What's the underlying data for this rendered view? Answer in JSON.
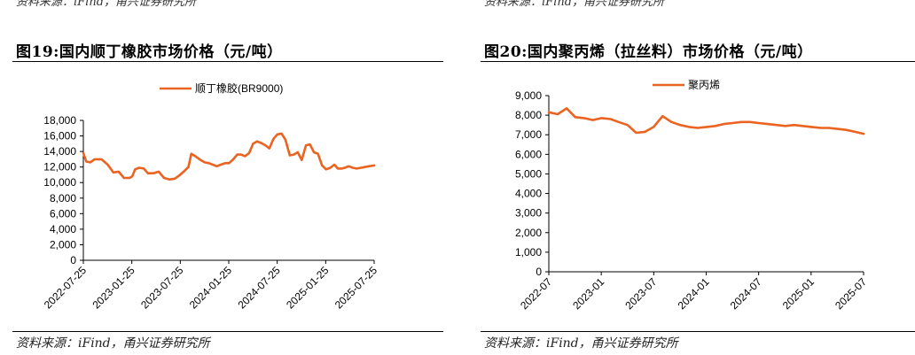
{
  "panels": [
    {
      "top_note": "资料来源：iFind，甬兴证券研究所",
      "title": "图19:国内顺丁橡胶市场价格（元/吨）",
      "source": "资料来源：iFind，甬兴证券研究所"
    },
    {
      "top_note": "资料来源：iFind，甬兴证券研究所",
      "title": "图20:国内聚丙烯（拉丝料）市场价格（元/吨）",
      "source": "资料来源：iFind，甬兴证券研究所"
    }
  ],
  "colors": {
    "series": "#EB6320",
    "axis": "#000000"
  },
  "chart_data": [
    {
      "type": "line",
      "title": "",
      "xlabel": "",
      "ylabel": "",
      "ylim": [
        0,
        18000
      ],
      "yticks": [
        "0",
        "2,000",
        "4,000",
        "6,000",
        "8,000",
        "10,000",
        "12,000",
        "14,000",
        "16,000",
        "18,000"
      ],
      "xticks": [
        "2022-07-25",
        "2023-01-25",
        "2023-07-25",
        "2024-01-25",
        "2024-07-25",
        "2025-01-25",
        "2025-07-25"
      ],
      "legend": "top-center",
      "grid": false,
      "series": [
        {
          "name": "顺丁橡胶(BR9000)",
          "x": [
            "2022-07-25",
            "2022-08-05",
            "2022-08-20",
            "2022-09-05",
            "2022-10-01",
            "2022-10-25",
            "2022-11-15",
            "2022-12-05",
            "2022-12-25",
            "2023-01-15",
            "2023-01-25",
            "2023-02-05",
            "2023-02-20",
            "2023-03-10",
            "2023-03-25",
            "2023-04-15",
            "2023-05-05",
            "2023-05-25",
            "2023-06-15",
            "2023-07-05",
            "2023-07-25",
            "2023-08-10",
            "2023-08-25",
            "2023-09-05",
            "2023-09-20",
            "2023-10-10",
            "2023-10-25",
            "2023-11-10",
            "2023-11-25",
            "2023-12-10",
            "2023-12-25",
            "2024-01-10",
            "2024-01-25",
            "2024-02-10",
            "2024-02-25",
            "2024-03-10",
            "2024-03-25",
            "2024-04-10",
            "2024-04-25",
            "2024-05-10",
            "2024-05-25",
            "2024-06-10",
            "2024-06-25",
            "2024-07-10",
            "2024-07-25",
            "2024-08-10",
            "2024-08-25",
            "2024-09-10",
            "2024-09-25",
            "2024-10-10",
            "2024-10-25",
            "2024-11-10",
            "2024-11-25",
            "2024-12-10",
            "2024-12-25",
            "2025-01-10",
            "2025-01-25",
            "2025-02-10",
            "2025-02-25",
            "2025-03-10",
            "2025-03-25",
            "2025-04-05",
            "2025-04-20",
            "2025-05-05",
            "2025-05-20",
            "2025-06-05",
            "2025-06-20",
            "2025-07-05",
            "2025-07-25"
          ],
          "values": [
            13800,
            12700,
            12600,
            13000,
            13000,
            12300,
            11300,
            11400,
            10600,
            10600,
            10800,
            11700,
            11900,
            11800,
            11200,
            11200,
            11400,
            10600,
            10400,
            10500,
            11000,
            11500,
            12000,
            13700,
            13400,
            12900,
            12600,
            12500,
            12300,
            12100,
            12300,
            12500,
            12500,
            13000,
            13600,
            13600,
            13400,
            13800,
            15000,
            15300,
            15100,
            14800,
            14400,
            15600,
            16200,
            16300,
            15500,
            13500,
            13600,
            13900,
            12900,
            14800,
            14900,
            13900,
            13700,
            12200,
            11700,
            11900,
            12300,
            11800,
            11800,
            11900,
            12100,
            11900,
            11800,
            11900,
            12000,
            12100,
            12200
          ]
        }
      ]
    },
    {
      "type": "line",
      "title": "",
      "xlabel": "",
      "ylabel": "",
      "ylim": [
        0,
        9000
      ],
      "yticks": [
        "0",
        "1,000",
        "2,000",
        "3,000",
        "4,000",
        "5,000",
        "6,000",
        "7,000",
        "8,000",
        "9,000"
      ],
      "xticks": [
        "2022-07",
        "2023-01",
        "2023-07",
        "2024-01",
        "2024-07",
        "2025-01",
        "2025-07"
      ],
      "legend": "top-center",
      "grid": false,
      "series": [
        {
          "name": "聚丙烯",
          "x": [
            "2022-07",
            "2022-08",
            "2022-09",
            "2022-10",
            "2022-11",
            "2022-12",
            "2023-01",
            "2023-02",
            "2023-03",
            "2023-04",
            "2023-05",
            "2023-06",
            "2023-07",
            "2023-08",
            "2023-09",
            "2023-10",
            "2023-11",
            "2023-12",
            "2024-01",
            "2024-02",
            "2024-03",
            "2024-04",
            "2024-05",
            "2024-06",
            "2024-07",
            "2024-08",
            "2024-09",
            "2024-10",
            "2024-11",
            "2024-12",
            "2025-01",
            "2025-02",
            "2025-03",
            "2025-04",
            "2025-05",
            "2025-06",
            "2025-07"
          ],
          "values": [
            8150,
            8050,
            8350,
            7900,
            7850,
            7750,
            7850,
            7800,
            7650,
            7500,
            7100,
            7150,
            7400,
            7950,
            7650,
            7500,
            7400,
            7350,
            7400,
            7450,
            7550,
            7600,
            7650,
            7650,
            7600,
            7550,
            7500,
            7450,
            7500,
            7450,
            7400,
            7350,
            7350,
            7300,
            7250,
            7150,
            7050
          ]
        }
      ]
    }
  ]
}
